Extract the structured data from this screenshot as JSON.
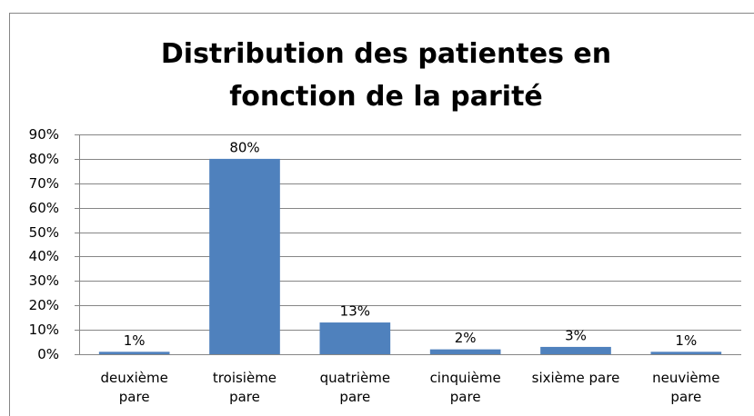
{
  "chart_data": {
    "type": "bar",
    "title": "Distribution des patientes en\nfonction de la parité",
    "categories": [
      "deuxième\npare",
      "troisième\npare",
      "quatrième\npare",
      "cinquième\npare",
      "sixième pare",
      "neuvième\npare"
    ],
    "values": [
      1,
      80,
      13,
      2,
      3,
      1
    ],
    "value_labels": [
      "1%",
      "80%",
      "13%",
      "2%",
      "3%",
      "1%"
    ],
    "color": "#4f81bd",
    "ylim": [
      0,
      90
    ],
    "yticks": [
      {
        "value": 0,
        "label": "0%"
      },
      {
        "value": 10,
        "label": "10%"
      },
      {
        "value": 20,
        "label": "20%"
      },
      {
        "value": 30,
        "label": "30%"
      },
      {
        "value": 40,
        "label": "40%"
      },
      {
        "value": 50,
        "label": "50%"
      },
      {
        "value": 60,
        "label": "60%"
      },
      {
        "value": 70,
        "label": "70%"
      },
      {
        "value": 80,
        "label": "80%"
      },
      {
        "value": 90,
        "label": "90%"
      }
    ],
    "grid": true
  }
}
